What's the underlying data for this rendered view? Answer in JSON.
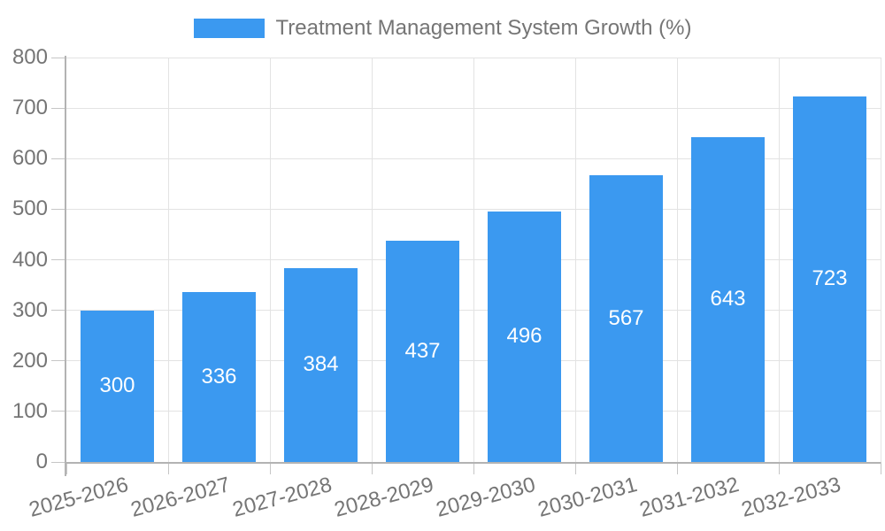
{
  "chart_data": {
    "type": "bar",
    "title": "Treatment Management System Growth (%)",
    "categories": [
      "2025-2026",
      "2026-2027",
      "2027-2028",
      "2028-2029",
      "2029-2030",
      "2030-2031",
      "2031-2032",
      "2032-2033"
    ],
    "values": [
      300,
      336,
      384,
      437,
      496,
      567,
      643,
      723
    ],
    "xlabel": "",
    "ylabel": "",
    "ylim": [
      0,
      800
    ],
    "ytick_step": 100,
    "yticks": [
      0,
      100,
      200,
      300,
      400,
      500,
      600,
      700,
      800
    ],
    "grid": true,
    "legend_position": "top-center",
    "value_labels": "inside-center",
    "colors": {
      "bar": "#3B99F0",
      "bar_label": "#FFFFFF",
      "axis_line": "#B3B3B3",
      "grid_line": "#E3E3E3",
      "tick_line": "#C6C6C6",
      "text": "#757575",
      "background": "#FFFFFF"
    }
  }
}
